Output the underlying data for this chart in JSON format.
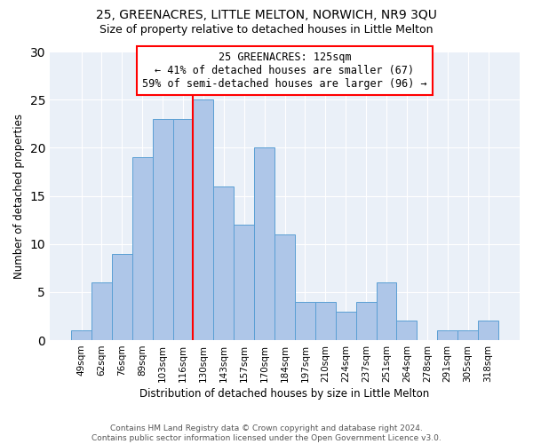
{
  "title": "25, GREENACRES, LITTLE MELTON, NORWICH, NR9 3QU",
  "subtitle": "Size of property relative to detached houses in Little Melton",
  "xlabel": "Distribution of detached houses by size in Little Melton",
  "ylabel": "Number of detached properties",
  "categories": [
    "49sqm",
    "62sqm",
    "76sqm",
    "89sqm",
    "103sqm",
    "116sqm",
    "130sqm",
    "143sqm",
    "157sqm",
    "170sqm",
    "184sqm",
    "197sqm",
    "210sqm",
    "224sqm",
    "237sqm",
    "251sqm",
    "264sqm",
    "278sqm",
    "291sqm",
    "305sqm",
    "318sqm"
  ],
  "values": [
    1,
    6,
    9,
    19,
    23,
    23,
    25,
    16,
    12,
    20,
    11,
    4,
    4,
    3,
    4,
    6,
    2,
    0,
    1,
    1,
    2
  ],
  "bar_color": "#aec6e8",
  "bar_edge_color": "#5a9fd4",
  "vline_index": 6,
  "vline_color": "red",
  "annotation_line1": "25 GREENACRES: 125sqm",
  "annotation_line2": "← 41% of detached houses are smaller (67)",
  "annotation_line3": "59% of semi-detached houses are larger (96) →",
  "annotation_box_color": "white",
  "annotation_box_edge_color": "red",
  "ylim": [
    0,
    30
  ],
  "yticks": [
    0,
    5,
    10,
    15,
    20,
    25,
    30
  ],
  "footnote": "Contains HM Land Registry data © Crown copyright and database right 2024.\nContains public sector information licensed under the Open Government Licence v3.0.",
  "bg_color": "#eaf0f8",
  "title_fontsize": 10,
  "subtitle_fontsize": 9,
  "axis_label_fontsize": 8.5,
  "tick_fontsize": 7.5,
  "annotation_fontsize": 8.5
}
